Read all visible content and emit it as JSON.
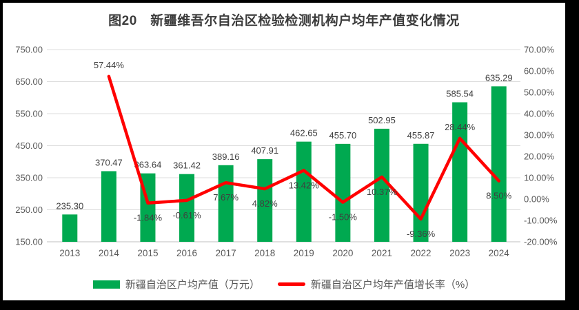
{
  "title": "图20　新疆维吾尔自治区检验检测机构户均年产值变化情况",
  "legend": [
    {
      "label": "新疆自治区户均产值（万元）",
      "swatch": "bar-swatch"
    },
    {
      "label": "新疆自治区户均年产值增长率（%）",
      "swatch": "line-swatch"
    }
  ],
  "colors": {
    "bar": "#00a950",
    "line": "#ff0000",
    "gridline": "#dcdcdc",
    "axis_line": "#bfbfbf",
    "tick_label": "#595959",
    "data_label": "#3f3f3f",
    "frame": "#000000",
    "background": "#ffffff"
  },
  "chart_data": {
    "type": "bar+line combo",
    "title": "图20　新疆维吾尔自治区检验检测机构户均年产值变化情况",
    "categories": [
      "2013",
      "2014",
      "2015",
      "2016",
      "2017",
      "2018",
      "2019",
      "2020",
      "2021",
      "2022",
      "2023",
      "2024"
    ],
    "series": [
      {
        "name": "新疆自治区户均产值（万元）",
        "type": "bar",
        "axis": "left",
        "color": "#00a950",
        "values": [
          235.3,
          370.47,
          363.64,
          361.42,
          389.16,
          407.91,
          462.65,
          455.7,
          502.95,
          455.87,
          585.54,
          635.29
        ],
        "labels": [
          "235.30",
          "370.47",
          "363.64",
          "361.42",
          "389.16",
          "407.91",
          "462.65",
          "455.70",
          "502.95",
          "455.87",
          "585.54",
          "635.29"
        ]
      },
      {
        "name": "新疆自治区户均年产值增长率（%）",
        "type": "line",
        "axis": "right",
        "color": "#ff0000",
        "values": [
          null,
          57.44,
          -1.84,
          -0.61,
          7.67,
          4.82,
          13.42,
          -1.5,
          10.37,
          -9.36,
          28.44,
          8.5
        ],
        "labels": [
          null,
          "57.44%",
          "-1.84%",
          "-0.61%",
          "7.67%",
          "4.82%",
          "13.42%",
          "-1.50%",
          "10.37%",
          "-9.36%",
          "28.44%",
          "8.50%"
        ],
        "label_positions": [
          null,
          "above",
          "below",
          "below",
          "below",
          "below",
          "below",
          "below",
          "below",
          "below",
          "above",
          "below"
        ]
      }
    ],
    "left_axis": {
      "min": 150,
      "max": 750,
      "tick_values": [
        750,
        650,
        550,
        450,
        350,
        250,
        150
      ],
      "ticks": [
        "750.00",
        "650.00",
        "550.00",
        "450.00",
        "350.00",
        "250.00",
        "150.00"
      ]
    },
    "right_axis": {
      "min": -20,
      "max": 70,
      "ticks": [
        "70.00%",
        "60.00%",
        "50.00%",
        "40.00%",
        "30.00%",
        "20.00%",
        "10.00%",
        "0.00%",
        "-10.00%",
        "-20.00%"
      ]
    },
    "grid": true,
    "legend_position": "bottom"
  }
}
